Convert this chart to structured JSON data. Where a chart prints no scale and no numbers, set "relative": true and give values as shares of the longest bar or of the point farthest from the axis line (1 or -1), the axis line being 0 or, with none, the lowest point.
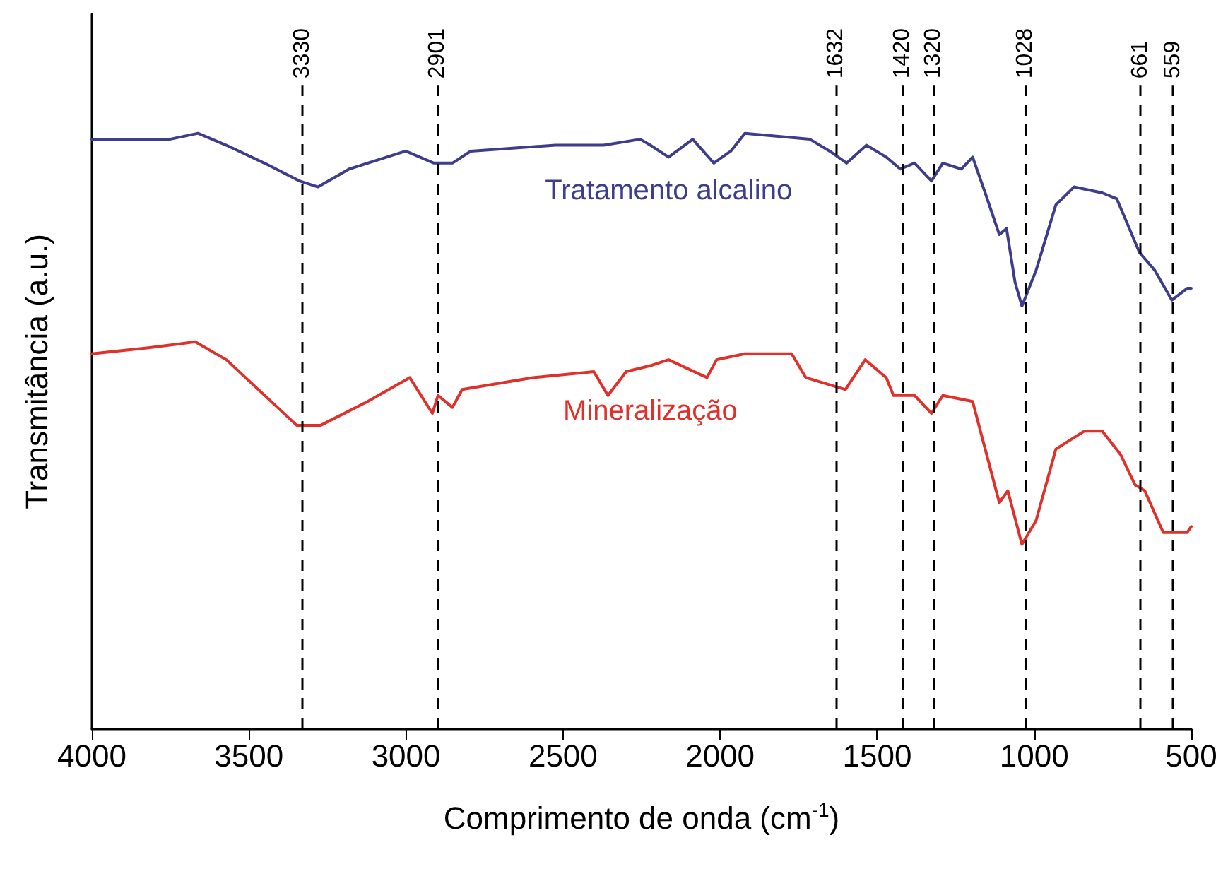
{
  "chart_data": {
    "type": "line",
    "relative": true,
    "xlabel": "Comprimento de onda (cm$^{-1}$)",
    "ylabel": "Transmitância (a.u.)",
    "xlim": [
      4000,
      500
    ],
    "xticks": [
      4000,
      3500,
      3000,
      2500,
      2000,
      1500,
      1000,
      500
    ],
    "grid": false,
    "legend": false,
    "marker": "none",
    "line_style": "solid",
    "series": [
      {
        "name": "Tratamento alcalino",
        "color": "#3d3d8c",
        "x": [
          4000,
          3752,
          3662,
          3572,
          3451,
          3339,
          3280,
          3181,
          3001,
          2911,
          2852,
          2794,
          2524,
          2371,
          2254,
          2222,
          2164,
          2087,
          2020,
          1966,
          1921,
          1714,
          1651,
          1597,
          1534,
          1471,
          1426,
          1381,
          1327,
          1291,
          1232,
          1196,
          1156,
          1111,
          1088,
          1061,
          1039,
          994,
          931,
          873,
          783,
          737,
          665,
          616,
          562,
          512,
          500
        ],
        "values": [
          0.99,
          0.99,
          1.0,
          0.98,
          0.95,
          0.92,
          0.91,
          0.94,
          0.97,
          0.95,
          0.95,
          0.97,
          0.98,
          0.98,
          0.99,
          0.98,
          0.96,
          0.99,
          0.95,
          0.97,
          1.0,
          0.99,
          0.97,
          0.95,
          0.98,
          0.96,
          0.94,
          0.95,
          0.92,
          0.95,
          0.94,
          0.96,
          0.9,
          0.83,
          0.84,
          0.75,
          0.71,
          0.77,
          0.88,
          0.91,
          0.9,
          0.89,
          0.8,
          0.77,
          0.72,
          0.74,
          0.74
        ]
      },
      {
        "name": "Mineralização",
        "color": "#e0302a",
        "x": [
          4000,
          3820,
          3671,
          3572,
          3348,
          3271,
          3122,
          2988,
          2916,
          2898,
          2852,
          2821,
          2596,
          2402,
          2357,
          2299,
          2222,
          2164,
          2042,
          2011,
          1921,
          1772,
          1727,
          1601,
          1538,
          1471,
          1448,
          1381,
          1327,
          1291,
          1196,
          1156,
          1111,
          1084,
          1039,
          994,
          931,
          841,
          783,
          724,
          679,
          648,
          589,
          558,
          513,
          500
        ],
        "values": [
          0.63,
          0.64,
          0.65,
          0.62,
          0.51,
          0.51,
          0.55,
          0.59,
          0.53,
          0.56,
          0.54,
          0.57,
          0.59,
          0.6,
          0.56,
          0.6,
          0.61,
          0.62,
          0.59,
          0.62,
          0.63,
          0.63,
          0.59,
          0.57,
          0.62,
          0.59,
          0.56,
          0.56,
          0.53,
          0.56,
          0.55,
          0.47,
          0.38,
          0.4,
          0.31,
          0.35,
          0.47,
          0.5,
          0.5,
          0.46,
          0.41,
          0.4,
          0.33,
          0.33,
          0.33,
          0.34
        ]
      }
    ],
    "ref_lines": [
      {
        "axis": "x",
        "value": 3330,
        "label": "3330",
        "color": "#000000",
        "line_style": "dashed"
      },
      {
        "axis": "x",
        "value": 2901,
        "label": "2901",
        "color": "#000000",
        "line_style": "dashed"
      },
      {
        "axis": "x",
        "value": 1632,
        "label": "1632",
        "color": "#000000",
        "line_style": "dashed"
      },
      {
        "axis": "x",
        "value": 1420,
        "label": "1420",
        "color": "#000000",
        "line_style": "dashed"
      },
      {
        "axis": "x",
        "value": 1320,
        "label": "1320",
        "color": "#000000",
        "line_style": "dashed"
      },
      {
        "axis": "x",
        "value": 1028,
        "label": "1028",
        "color": "#000000",
        "line_style": "dashed"
      },
      {
        "axis": "x",
        "value": 661,
        "label": "661",
        "color": "#000000",
        "line_style": "dashed"
      },
      {
        "axis": "x",
        "value": 559,
        "label": "559",
        "color": "#000000",
        "line_style": "dashed"
      }
    ]
  }
}
